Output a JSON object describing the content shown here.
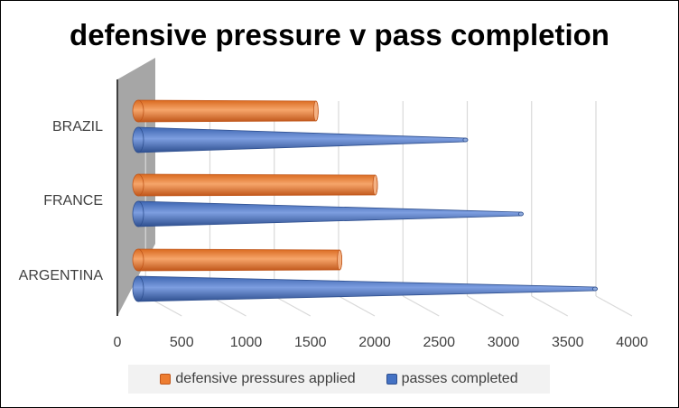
{
  "chart_data": {
    "type": "bar",
    "orientation": "horizontal",
    "style": "3d-cone",
    "title": "defensive pressure v pass completion",
    "categories": [
      "ARGENTINA",
      "FRANCE",
      "BRAZIL"
    ],
    "series": [
      {
        "name": "passes completed",
        "values": [
          3700,
          3100,
          2650
        ],
        "color": "#4472c4"
      },
      {
        "name": "defensive pressures applied",
        "values": [
          1700,
          2000,
          1500
        ],
        "color": "#ed7d31"
      }
    ],
    "xlabel": "",
    "ylabel": "",
    "xlim": [
      0,
      4000
    ],
    "xticks": [
      "0",
      "500",
      "1000",
      "1500",
      "2000",
      "2500",
      "3000",
      "3500",
      "4000"
    ],
    "grid": true,
    "legend_position": "bottom",
    "legend": [
      "defensive pressures applied",
      "passes completed"
    ]
  }
}
